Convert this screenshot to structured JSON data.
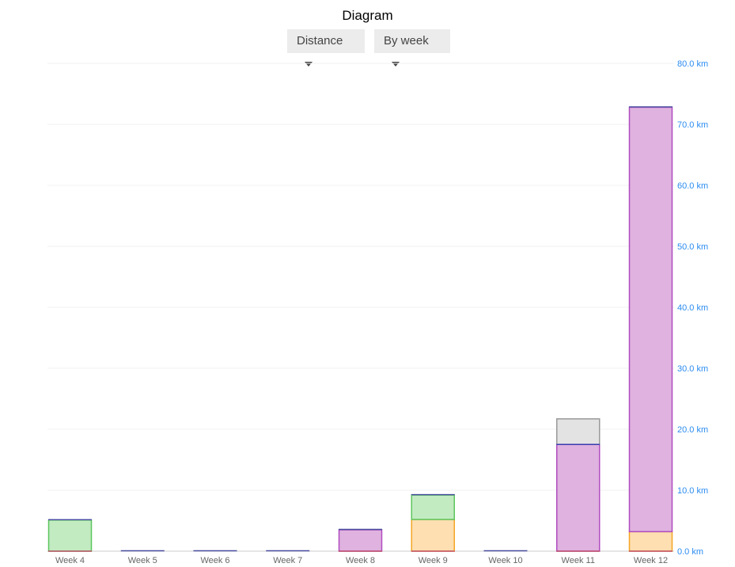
{
  "chart_data": {
    "type": "bar",
    "stacked": true,
    "title": "Diagram",
    "categories": [
      "Week 4",
      "Week 5",
      "Week 6",
      "Week 7",
      "Week 8",
      "Week 9",
      "Week 10",
      "Week 11",
      "Week 12"
    ],
    "series": [
      {
        "color": "#f5a623",
        "fill": "#fddfb1",
        "values": [
          0,
          0,
          0,
          0,
          0,
          5.2,
          0,
          0,
          3.2
        ]
      },
      {
        "color": "#5cc65c",
        "fill": "#c2ebc2",
        "values": [
          5.1,
          0,
          0,
          0,
          0,
          4.0,
          0,
          0,
          0
        ]
      },
      {
        "color": "#b04cc0",
        "fill": "#dfb2df",
        "values": [
          0,
          0,
          0,
          0,
          3.5,
          0,
          0,
          17.5,
          69.6
        ]
      },
      {
        "color": "#999999",
        "fill": "#e3e3e3",
        "values": [
          0,
          0,
          0,
          0,
          0,
          0,
          0,
          4.2,
          0
        ]
      }
    ],
    "baseline_color": "#c0506a",
    "top_line_color": "#4a4fa0",
    "ylim": [
      0,
      80
    ],
    "yticks": [
      "0.0 km",
      "10.0 km",
      "20.0 km",
      "30.0 km",
      "40.0 km",
      "50.0 km",
      "60.0 km",
      "70.0 km",
      "80.0 km"
    ],
    "yaxis_position": "right",
    "grid": true,
    "tick_color": "#2b8cf0"
  },
  "controls": {
    "metric_label": "Distance",
    "period_label": "By week"
  }
}
